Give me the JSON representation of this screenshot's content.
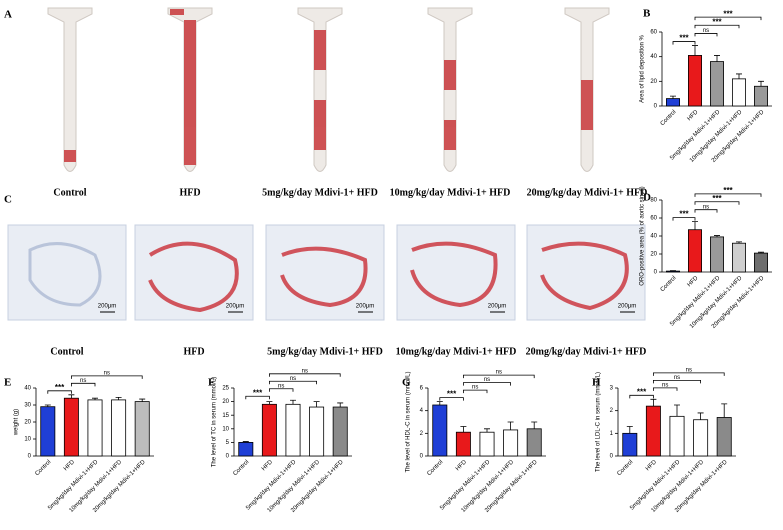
{
  "panels": [
    {
      "letter": "A",
      "labels": [
        "Control",
        "HFD",
        "5mg/kg/day Mdivi-1+ HFD",
        "10mg/kg/day Mdivi-1+ HFD",
        "20mg/kg/day Mdivi-1+ HFD"
      ]
    },
    {
      "letter": "C",
      "labels": [
        "Control",
        "HFD",
        "5mg/kg/day Mdivi-1+ HFD",
        "10mg/kg/day Mdivi-1+ HFD",
        "20mg/kg/day Mdivi-1+ HFD"
      ],
      "scale_label": "200μm"
    }
  ],
  "chart_data": [
    {
      "type": "bar",
      "letter": "B",
      "ylabel": "Area of lipid deposition %",
      "categories": [
        "Control",
        "HFD",
        "5mg/kg/day Mdivi-1+HFD",
        "10mg/kg/day Mdivi-1+HFD",
        "20mg/kg/day Mdivi-1+HFD"
      ],
      "values": [
        6,
        41,
        36,
        22,
        16
      ],
      "errors": [
        2,
        8,
        5,
        4,
        4
      ],
      "colors": [
        "#1f3fd6",
        "#e8191b",
        "#9a9a9a",
        "#ffffff",
        "#9a9a9a"
      ],
      "ylim": [
        0,
        60
      ],
      "yticks": [
        0,
        20,
        40,
        60
      ],
      "annotations": [
        {
          "label": "***",
          "between": [
            "Control",
            "HFD"
          ]
        },
        {
          "label": "ns",
          "between": [
            "HFD",
            "5mg/kg/day Mdivi-1+HFD"
          ]
        },
        {
          "label": "***",
          "between": [
            "HFD",
            "10mg/kg/day Mdivi-1+HFD"
          ]
        },
        {
          "label": "***",
          "between": [
            "HFD",
            "20mg/kg/day Mdivi-1+HFD"
          ]
        }
      ]
    },
    {
      "type": "bar",
      "letter": "D",
      "ylabel": "ORO-positive area (% of aortic sinus)",
      "categories": [
        "Control",
        "HFD",
        "5mg/kg/day Mdivi-1+HFD",
        "10mg/kg/day Mdivi-1+HFD",
        "20mg/kg/day Mdivi-1+HFD"
      ],
      "values": [
        1,
        47,
        39,
        32,
        21
      ],
      "errors": [
        0.5,
        9,
        1.5,
        1.5,
        1
      ],
      "colors": [
        "#1f3fd6",
        "#e8191b",
        "#9a9a9a",
        "#cfcfcf",
        "#6e6e6e"
      ],
      "ylim": [
        0,
        80
      ],
      "yticks": [
        0,
        20,
        40,
        60,
        80
      ],
      "annotations": [
        {
          "label": "***",
          "between": [
            "Control",
            "HFD"
          ]
        },
        {
          "label": "ns",
          "between": [
            "HFD",
            "5mg/kg/day Mdivi-1+HFD"
          ]
        },
        {
          "label": "***",
          "between": [
            "HFD",
            "10mg/kg/day Mdivi-1+HFD"
          ]
        },
        {
          "label": "***",
          "between": [
            "HFD",
            "20mg/kg/day Mdivi-1+HFD"
          ]
        }
      ]
    },
    {
      "type": "bar",
      "letter": "E",
      "ylabel": "weight (g)",
      "categories": [
        "Control",
        "HFD",
        "5mg/kg/day Mdivi-1+HFD",
        "10mg/kg/day Mdivi-1+HFD",
        "20mg/kg/day Mdivi-1+HFD"
      ],
      "values": [
        29,
        34,
        33,
        33,
        32
      ],
      "errors": [
        1,
        2,
        1,
        1.5,
        1.5
      ],
      "colors": [
        "#1f3fd6",
        "#e8191b",
        "#ffffff",
        "#ffffff",
        "#bdbdbd"
      ],
      "ylim": [
        0,
        40
      ],
      "yticks": [
        0,
        10,
        20,
        30,
        40
      ],
      "annotations": [
        {
          "label": "***",
          "between": [
            "Control",
            "HFD"
          ]
        },
        {
          "label": "ns",
          "between": [
            "HFD",
            "5mg/kg/day Mdivi-1+HFD"
          ]
        },
        {
          "label": "ns",
          "between": [
            "HFD",
            "20mg/kg/day Mdivi-1+HFD"
          ]
        }
      ]
    },
    {
      "type": "bar",
      "letter": "F",
      "ylabel": "The level of TC in serum (mmol/L)",
      "categories": [
        "Control",
        "HFD",
        "5mg/kg/day Mdivi-1+HFD",
        "10mg/kg/day Mdivi-1+HFD",
        "20mg/kg/day Mdivi-1+HFD"
      ],
      "values": [
        5,
        19,
        19,
        18,
        18
      ],
      "errors": [
        0.3,
        1,
        1.5,
        2,
        1.5
      ],
      "colors": [
        "#1f3fd6",
        "#e8191b",
        "#ffffff",
        "#ffffff",
        "#8a8a8a"
      ],
      "ylim": [
        0,
        25
      ],
      "yticks": [
        0,
        5,
        10,
        15,
        20,
        25
      ],
      "annotations": [
        {
          "label": "***",
          "between": [
            "Control",
            "HFD"
          ]
        },
        {
          "label": "ns",
          "between": [
            "HFD",
            "5mg/kg/day Mdivi-1+HFD"
          ]
        },
        {
          "label": "ns",
          "between": [
            "HFD",
            "10mg/kg/day Mdivi-1+HFD"
          ]
        },
        {
          "label": "ns",
          "between": [
            "HFD",
            "20mg/kg/day Mdivi-1+HFD"
          ]
        }
      ]
    },
    {
      "type": "bar",
      "letter": "G",
      "ylabel": "The level of HDL-C in serum (mmol/L)",
      "categories": [
        "Control",
        "HFD",
        "5mg/kg/day Mdivi-1+HFD",
        "10mg/kg/day Mdivi-1+HFD",
        "20mg/kg/day Mdivi-1+HFD"
      ],
      "values": [
        4.5,
        2.1,
        2.1,
        2.3,
        2.4
      ],
      "errors": [
        0.3,
        0.5,
        0.3,
        0.7,
        0.6
      ],
      "colors": [
        "#1f3fd6",
        "#e8191b",
        "#ffffff",
        "#ffffff",
        "#8a8a8a"
      ],
      "ylim": [
        0,
        6
      ],
      "yticks": [
        0,
        2,
        4,
        6
      ],
      "annotations": [
        {
          "label": "***",
          "between": [
            "Control",
            "HFD"
          ]
        },
        {
          "label": "ns",
          "between": [
            "HFD",
            "5mg/kg/day Mdivi-1+HFD"
          ]
        },
        {
          "label": "ns",
          "between": [
            "HFD",
            "10mg/kg/day Mdivi-1+HFD"
          ]
        },
        {
          "label": "ns",
          "between": [
            "HFD",
            "20mg/kg/day Mdivi-1+HFD"
          ]
        }
      ]
    },
    {
      "type": "bar",
      "letter": "H",
      "ylabel": "The level of LDL-C in serum (mmol/L)",
      "categories": [
        "Control",
        "HFD",
        "5mg/kg/day Mdivi-1+HFD",
        "10mg/kg/day Mdivi-1+HFD",
        "20mg/kg/day Mdivi-1+HFD"
      ],
      "values": [
        1.0,
        2.2,
        1.75,
        1.6,
        1.7
      ],
      "errors": [
        0.3,
        0.3,
        0.5,
        0.3,
        0.6
      ],
      "colors": [
        "#1f3fd6",
        "#e8191b",
        "#ffffff",
        "#ffffff",
        "#8a8a8a"
      ],
      "ylim": [
        0,
        3
      ],
      "yticks": [
        0,
        1,
        2,
        3
      ],
      "annotations": [
        {
          "label": "***",
          "between": [
            "Control",
            "HFD"
          ]
        },
        {
          "label": "ns",
          "between": [
            "HFD",
            "5mg/kg/day Mdivi-1+HFD"
          ]
        },
        {
          "label": "ns",
          "between": [
            "HFD",
            "10mg/kg/day Mdivi-1+HFD"
          ]
        },
        {
          "label": "ns",
          "between": [
            "HFD",
            "20mg/kg/day Mdivi-1+HFD"
          ]
        }
      ]
    }
  ]
}
